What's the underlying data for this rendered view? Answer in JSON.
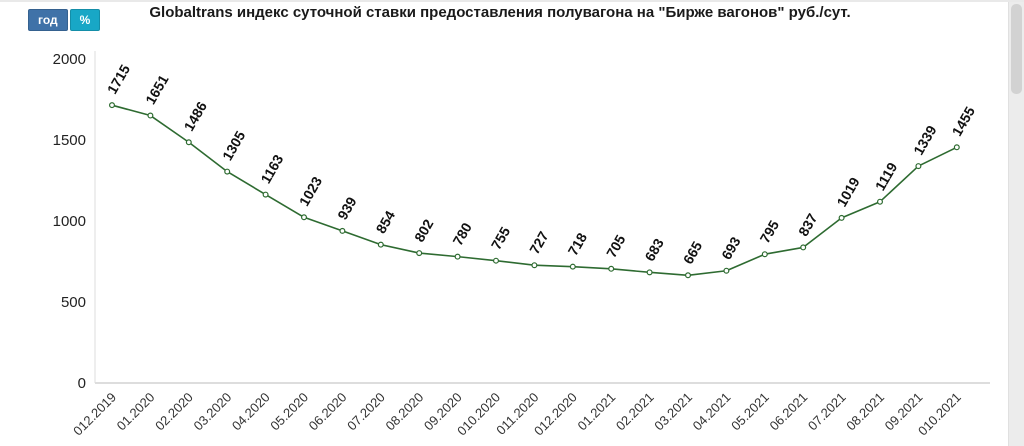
{
  "header": {
    "title": "Globaltrans индекс суточной ставки предоставления полувагона на \"Бирже вагонов\" руб./сут."
  },
  "controls": {
    "year_button": "год",
    "percent_button": "%"
  },
  "chart_data": {
    "type": "line",
    "title": "Globaltrans индекс суточной ставки предоставления полувагона на \"Бирже вагонов\" руб./сут.",
    "categories": [
      "012.2019",
      "01.2020",
      "02.2020",
      "03.2020",
      "04.2020",
      "05.2020",
      "06.2020",
      "07.2020",
      "08.2020",
      "09.2020",
      "010.2020",
      "011.2020",
      "012.2020",
      "01.2021",
      "02.2021",
      "03.2021",
      "04.2021",
      "05.2021",
      "06.2021",
      "07.2021",
      "08.2021",
      "09.2021",
      "010.2021"
    ],
    "values": [
      1715,
      1651,
      1486,
      1305,
      1163,
      1023,
      939,
      854,
      802,
      780,
      755,
      727,
      718,
      705,
      683,
      665,
      693,
      795,
      837,
      1019,
      1119,
      1339,
      1455
    ],
    "xlabel": "",
    "ylabel": "",
    "ylim": [
      0,
      2000
    ],
    "yticks": [
      0,
      500,
      1000,
      1500,
      2000
    ],
    "grid": false,
    "legend_position": "none",
    "line_color": "#2e6b31",
    "marker_fill": "#ffffff",
    "label_color": "#111111",
    "axis_color": "#bbbbbb",
    "tick_label_color": "#222222"
  }
}
